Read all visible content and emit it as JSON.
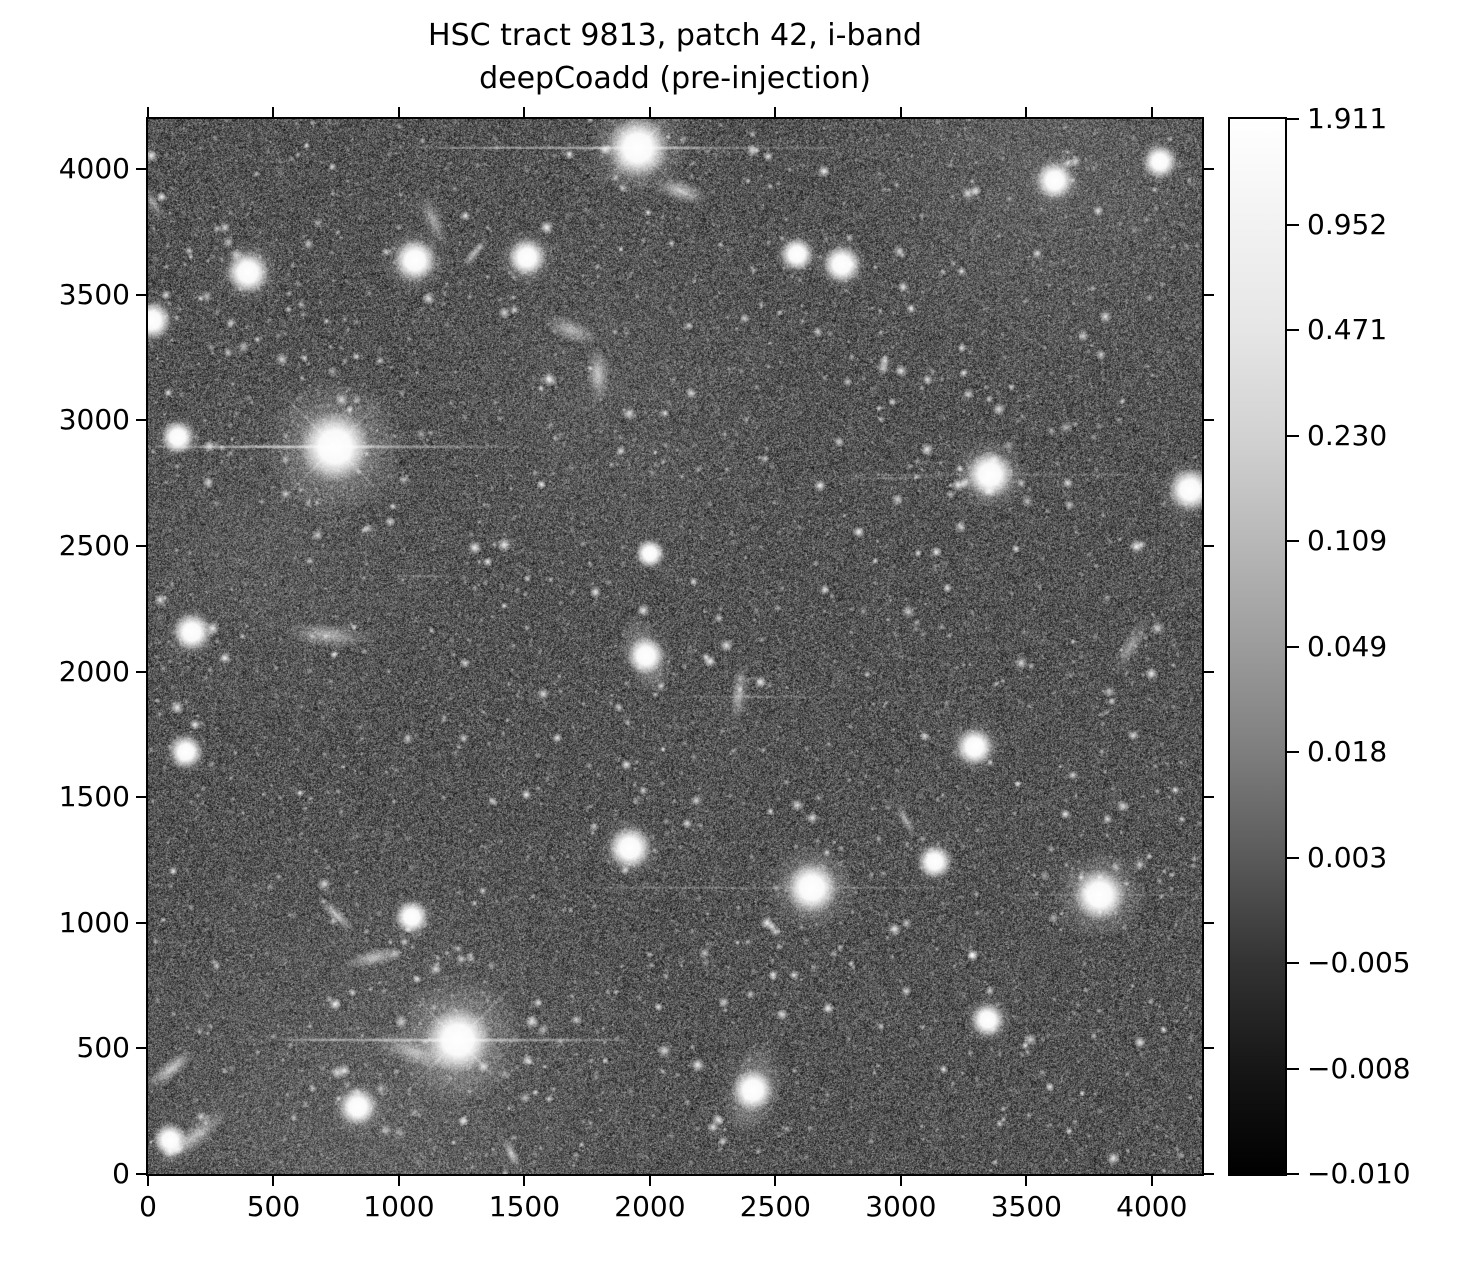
{
  "figure": {
    "title_line1": "HSC tract 9813, patch 42, i-band",
    "title_line2": "deepCoadd (pre-injection)"
  },
  "chart_data": {
    "type": "heatmap",
    "title": "HSC tract 9813, patch 42, i-band\ndeepCoadd (pre-injection)",
    "xlabel": "",
    "ylabel": "",
    "xlim": [
      0,
      4200
    ],
    "ylim": [
      0,
      4200
    ],
    "x_ticks": [
      0,
      500,
      1000,
      1500,
      2000,
      2500,
      3000,
      3500,
      4000
    ],
    "y_ticks": [
      0,
      500,
      1000,
      1500,
      2000,
      2500,
      3000,
      3500,
      4000
    ],
    "grid": false,
    "image_description": "Grayscale deep-sky coadd image: dense field of thousands of faint stars and galaxies over granular noise, with several saturated bright stars showing halos, diffraction spikes and horizontal bleed trails; rich cluster of sources in lower-left quadrant.",
    "colorbar": {
      "position": "right",
      "scale_type": "asinh-like (nonlinear stretch, ticks evenly spaced)",
      "tick_labels": [
        "1.911",
        "0.952",
        "0.471",
        "0.230",
        "0.109",
        "0.049",
        "0.018",
        "0.003",
        "−0.005",
        "−0.008",
        "−0.010"
      ],
      "vmin": -0.01,
      "vmax": 1.911,
      "gradient_stops": [
        "#ffffff",
        "#f2f2f2",
        "#e6e6e6",
        "#d2d2d2",
        "#b8b8b8",
        "#9c9c9c",
        "#7e7e7e",
        "#5a5a5a",
        "#333333",
        "#161616",
        "#000000"
      ]
    },
    "render_seed": 42,
    "background_mean_gray": "#565656",
    "bright_sources": [
      {
        "x": 745,
        "y": 2895,
        "core": 15,
        "halo": 70,
        "spikes": true,
        "trail": 185
      },
      {
        "x": 1235,
        "y": 533,
        "core": 14,
        "halo": 66,
        "spikes": true,
        "trail": 170
      },
      {
        "x": 1952,
        "y": 4085,
        "core": 13,
        "halo": 50,
        "spikes": true,
        "trail": 200
      },
      {
        "x": 2645,
        "y": 1139,
        "core": 11,
        "halo": 44,
        "spikes": false,
        "trail": 130
      },
      {
        "x": 3792,
        "y": 1111,
        "core": 11,
        "halo": 46,
        "spikes": false,
        "trail": 90
      },
      {
        "x": 3355,
        "y": 2784,
        "core": 10,
        "halo": 38,
        "spikes": false,
        "trail": 140
      },
      {
        "x": 398,
        "y": 3589,
        "core": 9,
        "halo": 30,
        "spikes": false,
        "trail": 0
      },
      {
        "x": 1064,
        "y": 3637,
        "core": 9,
        "halo": 32,
        "spikes": false,
        "trail": 0
      },
      {
        "x": 1510,
        "y": 3649,
        "core": 8,
        "halo": 28,
        "spikes": false,
        "trail": 0
      },
      {
        "x": 2586,
        "y": 3661,
        "core": 7,
        "halo": 22,
        "spikes": false,
        "trail": 0
      },
      {
        "x": 2765,
        "y": 3621,
        "core": 8,
        "halo": 26,
        "spikes": false,
        "trail": 0
      },
      {
        "x": 3613,
        "y": 3955,
        "core": 8,
        "halo": 26,
        "spikes": false,
        "trail": 0
      },
      {
        "x": 4032,
        "y": 4030,
        "core": 7,
        "halo": 22,
        "spikes": false,
        "trail": 0
      },
      {
        "x": 16,
        "y": 3398,
        "core": 8,
        "halo": 26,
        "spikes": false,
        "trail": 0
      },
      {
        "x": 119,
        "y": 2933,
        "core": 7,
        "halo": 22,
        "spikes": false,
        "trail": 0
      },
      {
        "x": 175,
        "y": 2157,
        "core": 8,
        "halo": 26,
        "spikes": false,
        "trail": 0
      },
      {
        "x": 151,
        "y": 1680,
        "core": 7,
        "halo": 22,
        "spikes": false,
        "trail": 0
      },
      {
        "x": 1920,
        "y": 1298,
        "core": 9,
        "halo": 30,
        "spikes": false,
        "trail": 0
      },
      {
        "x": 3294,
        "y": 1700,
        "core": 8,
        "halo": 26,
        "spikes": false,
        "trail": 0
      },
      {
        "x": 3135,
        "y": 1243,
        "core": 7,
        "halo": 22,
        "spikes": false,
        "trail": 0
      },
      {
        "x": 3346,
        "y": 613,
        "core": 7,
        "halo": 24,
        "spikes": false,
        "trail": 0
      },
      {
        "x": 836,
        "y": 267,
        "core": 8,
        "halo": 26,
        "spikes": false,
        "trail": 0
      },
      {
        "x": 1051,
        "y": 1023,
        "core": 7,
        "halo": 22,
        "spikes": false,
        "trail": 0
      },
      {
        "x": 4152,
        "y": 2724,
        "core": 9,
        "halo": 30,
        "spikes": false,
        "trail": 0
      },
      {
        "x": 88,
        "y": 135,
        "core": 7,
        "halo": 20,
        "spikes": false,
        "trail": 0
      },
      {
        "x": 2410,
        "y": 334,
        "core": 9,
        "halo": 28,
        "ellipse": true,
        "spikes": false,
        "trail": 0
      },
      {
        "x": 1984,
        "y": 2063,
        "core": 8,
        "halo": 24,
        "ellipse": true,
        "spikes": false,
        "trail": 0
      },
      {
        "x": 2000,
        "y": 2470,
        "core": 6,
        "halo": 18,
        "spikes": false,
        "trail": 0
      }
    ],
    "clusters": [
      {
        "x": 1235,
        "y": 533,
        "r": 500,
        "n": 30
      },
      {
        "x": 745,
        "y": 2895,
        "r": 420,
        "n": 22
      },
      {
        "x": 3355,
        "y": 2784,
        "r": 380,
        "n": 16
      },
      {
        "x": 398,
        "y": 3589,
        "r": 350,
        "n": 14
      },
      {
        "x": 3792,
        "y": 1111,
        "r": 320,
        "n": 12
      }
    ],
    "trails": [
      {
        "x1": 0,
        "x2": 900,
        "y": 2895
      },
      {
        "x1": 2750,
        "x2": 3150,
        "y": 2770
      },
      {
        "x1": 290,
        "x2": 1100,
        "y": 535
      },
      {
        "x1": 1600,
        "x2": 2400,
        "y": 1140
      },
      {
        "x1": 950,
        "x2": 1900,
        "y": 4085
      },
      {
        "x1": 2050,
        "x2": 2800,
        "y": 1900
      },
      {
        "x1": 960,
        "x2": 1250,
        "y": 2380
      }
    ]
  }
}
